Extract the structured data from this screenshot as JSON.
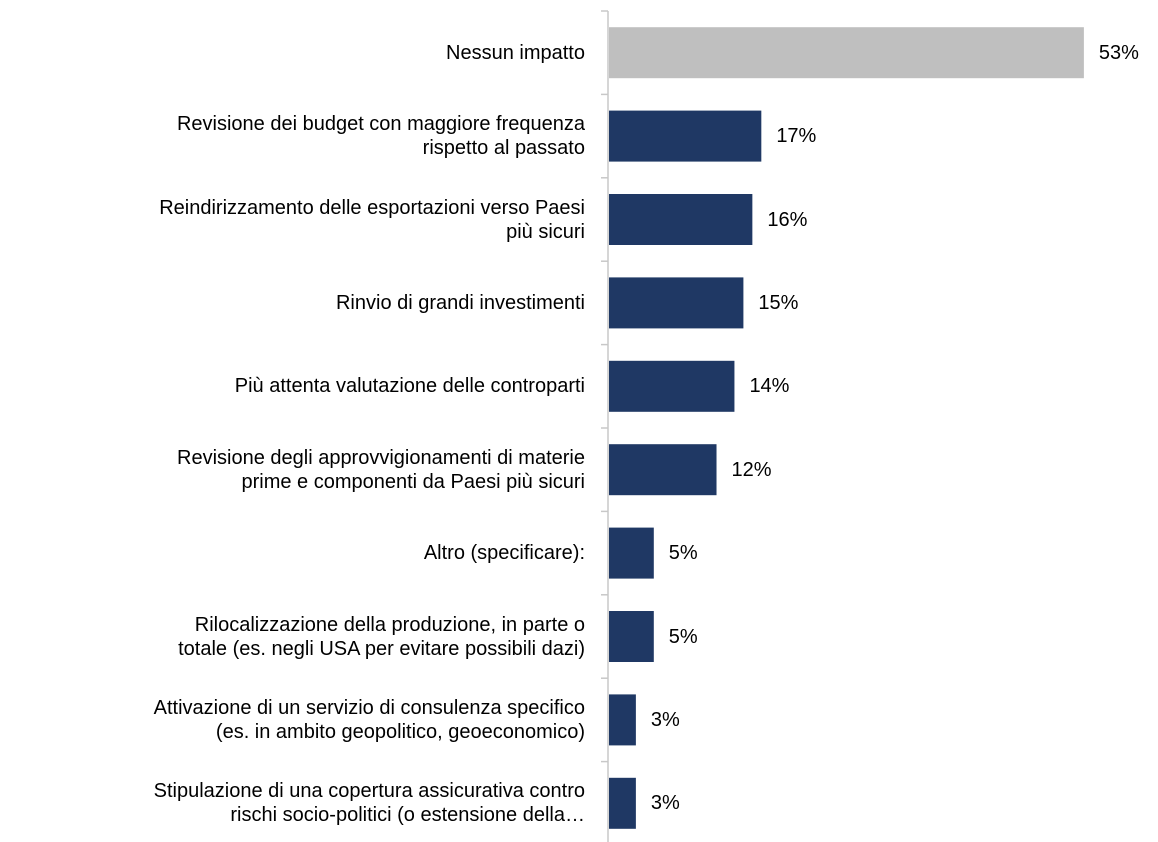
{
  "chart_data": {
    "type": "bar",
    "orientation": "horizontal",
    "categories": [
      "Nessun impatto",
      "Revisione dei budget con maggiore frequenza\nrispetto al passato",
      "Reindirizzamento delle esportazioni verso Paesi\npiù sicuri",
      "Rinvio di grandi investimenti",
      "Più attenta valutazione delle controparti",
      "Revisione degli approvvigionamenti di materie\nprime e componenti da Paesi più sicuri",
      "Altro (specificare):",
      "Rilocalizzazione della produzione, in parte o\ntotale (es. negli USA per evitare possibili dazi)",
      "Attivazione di un servizio di consulenza specifico\n(es. in ambito geopolitico, geoeconomico)",
      "Stipulazione di una copertura assicurativa contro\nrischi socio-politici (o estensione della…"
    ],
    "values": [
      53,
      17,
      16,
      15,
      14,
      12,
      5,
      5,
      3,
      3
    ],
    "value_labels": [
      "53%",
      "17%",
      "16%",
      "15%",
      "14%",
      "12%",
      "5%",
      "5%",
      "3%",
      "3%"
    ],
    "colors": [
      "#bfbfbf",
      "#1f3864",
      "#1f3864",
      "#1f3864",
      "#1f3864",
      "#1f3864",
      "#1f3864",
      "#1f3864",
      "#1f3864",
      "#1f3864"
    ]
  }
}
